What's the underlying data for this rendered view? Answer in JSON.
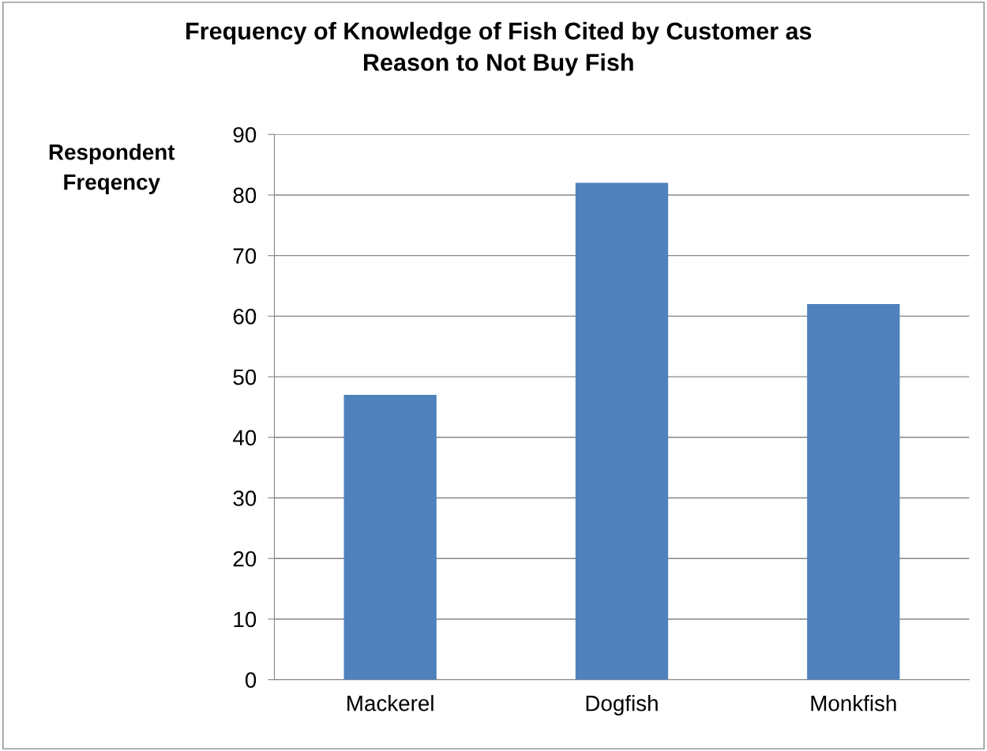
{
  "chart_data": {
    "type": "bar",
    "title": "Frequency of Knowledge of Fish Cited by Customer as\nReason to Not Buy Fish",
    "ylabel": "Respondent\nFreqency",
    "categories": [
      "Mackerel",
      "Dogfish",
      "Monkfish"
    ],
    "values": [
      47,
      82,
      62
    ],
    "color": "#4f81bd",
    "ylim": [
      0,
      90
    ],
    "yticks": [
      0,
      10,
      20,
      30,
      40,
      50,
      60,
      70,
      80,
      90
    ],
    "grid": "y",
    "legend": false
  }
}
